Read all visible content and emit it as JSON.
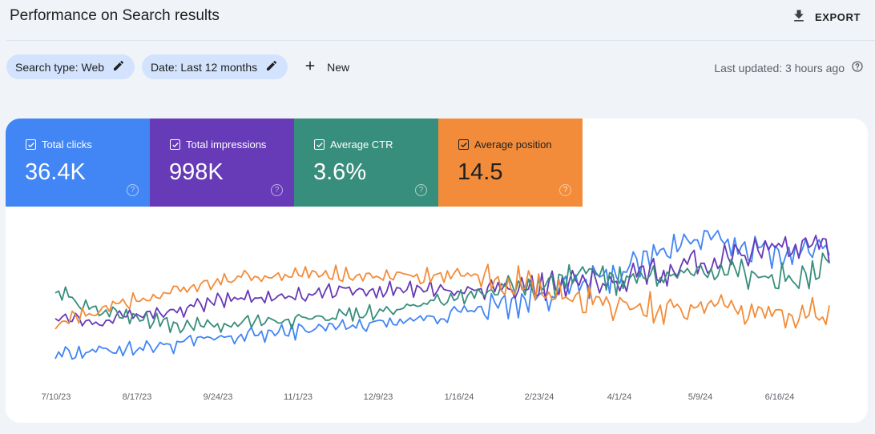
{
  "header": {
    "title": "Performance on Search results",
    "export_label": "EXPORT"
  },
  "filters": {
    "search_type": "Search type: Web",
    "date": "Date: Last 12 months",
    "new_label": "New",
    "last_updated": "Last updated: 3 hours ago"
  },
  "metrics": [
    {
      "label": "Total clicks",
      "value": "36.4K",
      "color": "#4285f4"
    },
    {
      "label": "Total impressions",
      "value": "998K",
      "color": "#673ab7"
    },
    {
      "label": "Average CTR",
      "value": "3.6%",
      "color": "#388e7c"
    },
    {
      "label": "Average position",
      "value": "14.5",
      "color": "#f28c3a"
    }
  ],
  "icons": [
    "download-icon",
    "pencil-icon",
    "plus-icon",
    "help-icon",
    "checkbox-icon"
  ],
  "chart_data": {
    "type": "line",
    "x_ticks": [
      "7/10/23",
      "8/17/23",
      "9/24/23",
      "11/1/23",
      "12/9/23",
      "1/16/24",
      "2/23/24",
      "4/1/24",
      "5/9/24",
      "6/16/24"
    ],
    "y_axis_visible": false,
    "grid": false,
    "legend": "metric cards above chart",
    "series": [
      {
        "name": "Total clicks",
        "color": "#4285f4",
        "values": [
          0.08,
          0.09,
          0.12,
          0.14,
          0.18,
          0.21,
          0.24,
          0.27,
          0.3,
          0.33,
          0.36,
          0.42,
          0.47,
          0.55,
          0.62,
          0.74,
          0.9,
          0.94,
          0.86,
          0.82,
          0.89
        ]
      },
      {
        "name": "Total impressions",
        "color": "#673ab7",
        "values": [
          0.36,
          0.33,
          0.37,
          0.39,
          0.45,
          0.5,
          0.51,
          0.54,
          0.55,
          0.56,
          0.55,
          0.54,
          0.59,
          0.58,
          0.6,
          0.66,
          0.72,
          0.79,
          0.86,
          0.87,
          0.88
        ]
      },
      {
        "name": "Average CTR",
        "color": "#388e7c",
        "values": [
          0.55,
          0.4,
          0.36,
          0.29,
          0.28,
          0.31,
          0.33,
          0.35,
          0.38,
          0.43,
          0.47,
          0.54,
          0.56,
          0.62,
          0.65,
          0.63,
          0.68,
          0.7,
          0.66,
          0.63,
          0.72
        ]
      },
      {
        "name": "Average position",
        "color": "#f28c3a",
        "values": [
          0.3,
          0.38,
          0.47,
          0.55,
          0.6,
          0.64,
          0.66,
          0.68,
          0.67,
          0.65,
          0.66,
          0.64,
          0.6,
          0.5,
          0.44,
          0.43,
          0.41,
          0.4,
          0.39,
          0.38,
          0.37
        ]
      }
    ]
  }
}
